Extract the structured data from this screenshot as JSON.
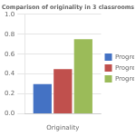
{
  "chart_data": {
    "type": "bar",
    "title": "Comparison of originality in 3 classrooms",
    "categories": [
      "Originality"
    ],
    "series": [
      {
        "name": "Progress Perc",
        "color": "#4472C4",
        "values": [
          0.3
        ]
      },
      {
        "name": "Progress Perc",
        "color": "#C0504D",
        "values": [
          0.45
        ]
      },
      {
        "name": "Progress Perc",
        "color": "#9BBB59",
        "values": [
          0.75
        ]
      }
    ],
    "ylim": [
      0,
      1.0
    ],
    "yticks": [
      {
        "value": 0,
        "label": "0.0"
      },
      {
        "value": 0.2,
        "label": "0.2"
      },
      {
        "value": 0.4,
        "label": "0.4"
      },
      {
        "value": 0.6,
        "label": "0.6"
      },
      {
        "value": 0.8,
        "label": "0.8"
      },
      {
        "value": 1.0,
        "label": "1.0"
      }
    ],
    "grid": true,
    "legend": "right"
  }
}
